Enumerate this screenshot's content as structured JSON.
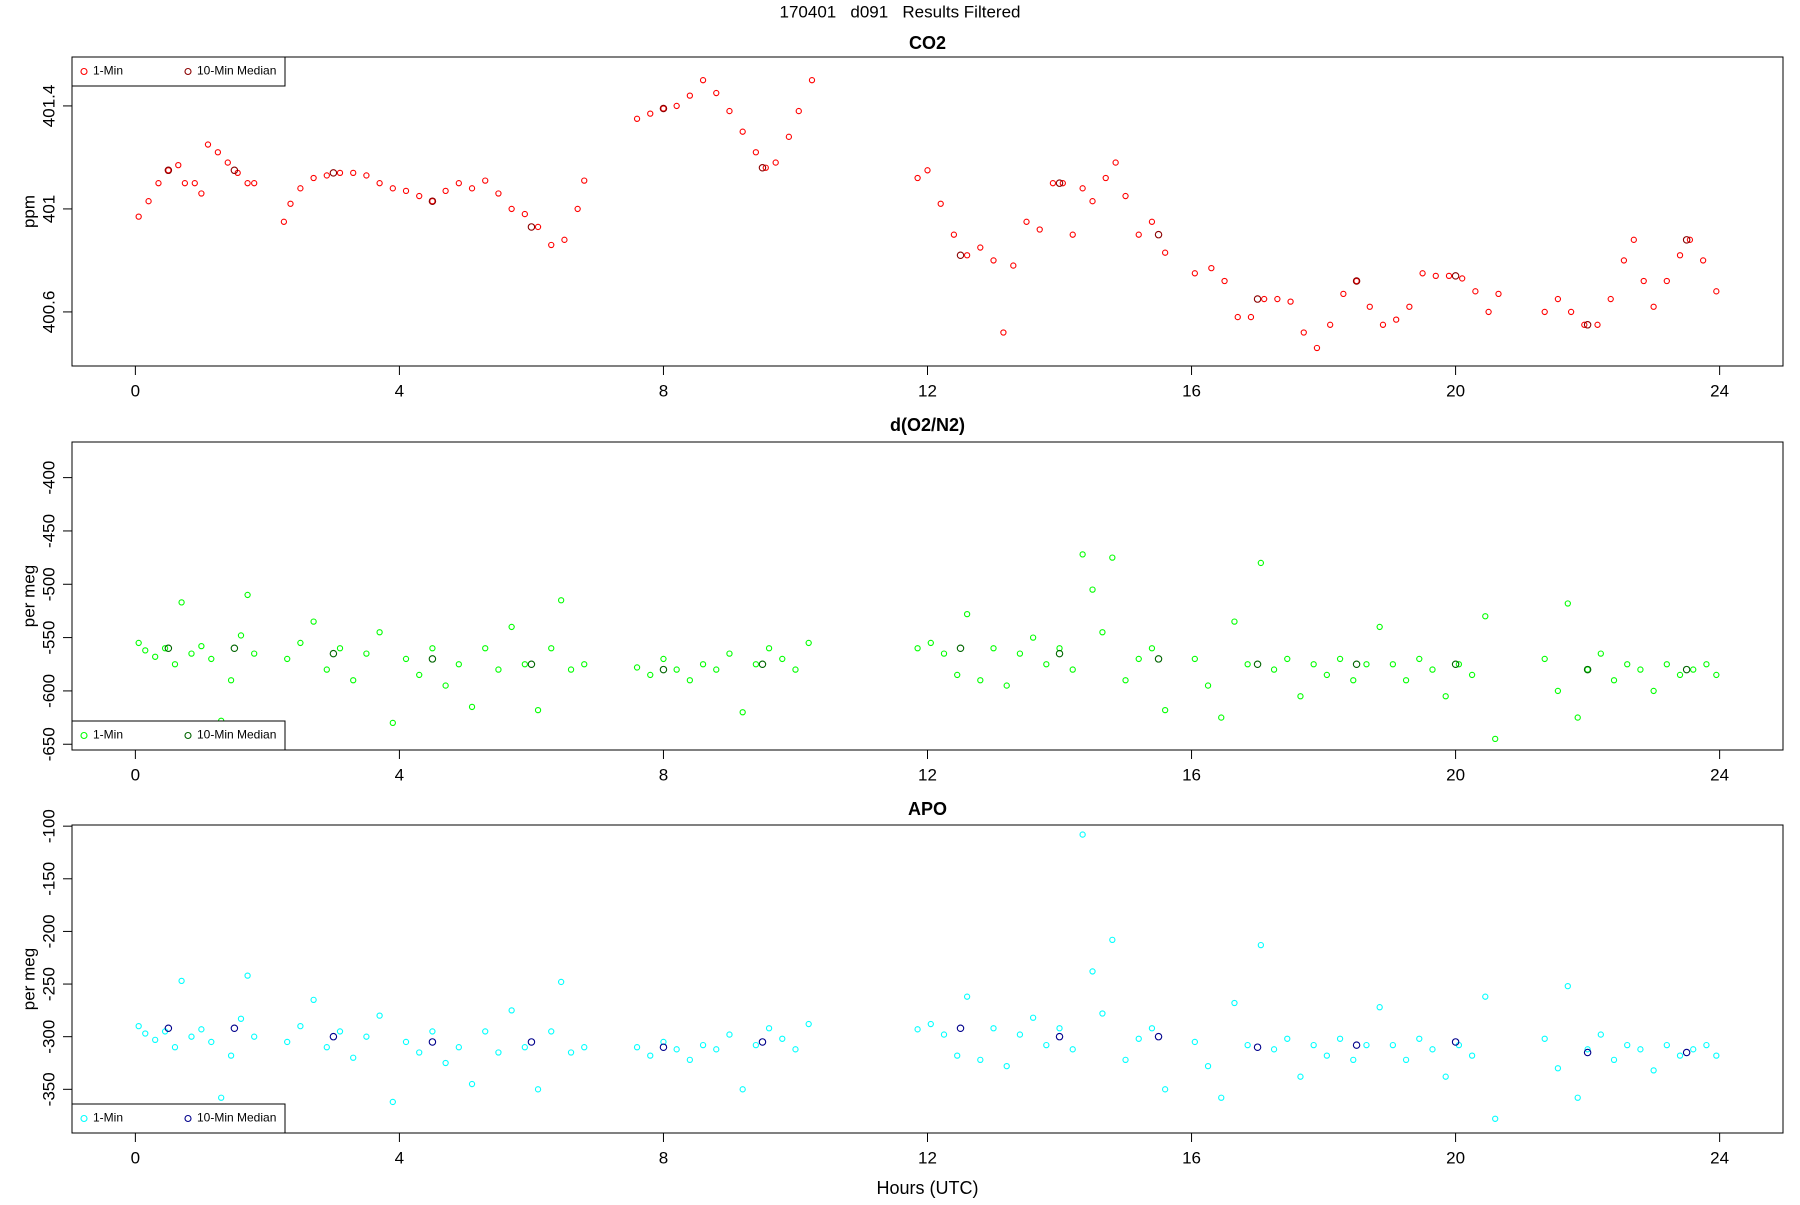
{
  "title": "170401   d091   Results Filtered",
  "chart_data": [
    {
      "type": "scatter",
      "title": "CO2",
      "ylabel": "ppm",
      "xlim": [
        -0.96,
        24.96
      ],
      "xticks": [
        0,
        4,
        8,
        12,
        16,
        20,
        24
      ],
      "ylim": [
        400.39,
        401.59
      ],
      "yticks": [
        400.6,
        401.0,
        401.4
      ],
      "legend": "top-left",
      "series": [
        {
          "name": "1-Min",
          "color": "#ff0000",
          "x": [
            0.05,
            0.2,
            0.35,
            0.5,
            0.65,
            0.75,
            0.9,
            1.0,
            1.1,
            1.25,
            1.4,
            1.55,
            1.7,
            1.8,
            2.25,
            2.35,
            2.5,
            2.7,
            2.9,
            3.1,
            3.3,
            3.5,
            3.7,
            3.9,
            4.1,
            4.3,
            4.5,
            4.7,
            4.9,
            5.1,
            5.3,
            5.5,
            5.7,
            5.9,
            6.1,
            6.3,
            6.5,
            6.7,
            6.8,
            7.6,
            7.8,
            8.0,
            8.2,
            8.4,
            8.6,
            8.8,
            9.0,
            9.2,
            9.4,
            9.55,
            9.7,
            9.9,
            10.05,
            10.25,
            11.85,
            12.0,
            12.2,
            12.4,
            12.6,
            12.8,
            13.0,
            13.15,
            13.3,
            13.5,
            13.7,
            13.9,
            14.05,
            14.2,
            14.35,
            14.5,
            14.7,
            14.85,
            15.0,
            15.2,
            15.4,
            15.6,
            16.05,
            16.3,
            16.5,
            16.7,
            16.9,
            17.1,
            17.3,
            17.5,
            17.7,
            17.9,
            18.1,
            18.3,
            18.5,
            18.7,
            18.9,
            19.1,
            19.3,
            19.5,
            19.7,
            19.9,
            20.1,
            20.3,
            20.5,
            20.65,
            21.35,
            21.55,
            21.75,
            21.95,
            22.15,
            22.35,
            22.55,
            22.7,
            22.85,
            23.0,
            23.2,
            23.4,
            23.55,
            23.75,
            23.95
          ],
          "values": [
            400.97,
            401.03,
            401.1,
            401.15,
            401.17,
            401.1,
            401.1,
            401.06,
            401.25,
            401.22,
            401.18,
            401.14,
            401.1,
            401.1,
            400.95,
            401.02,
            401.08,
            401.12,
            401.13,
            401.14,
            401.14,
            401.13,
            401.1,
            401.08,
            401.07,
            401.05,
            401.03,
            401.07,
            401.1,
            401.08,
            401.11,
            401.06,
            401.0,
            400.98,
            400.93,
            400.86,
            400.88,
            401.0,
            401.11,
            401.35,
            401.37,
            401.39,
            401.4,
            401.44,
            401.5,
            401.45,
            401.38,
            401.3,
            401.22,
            401.16,
            401.18,
            401.28,
            401.38,
            401.5,
            401.12,
            401.15,
            401.02,
            400.9,
            400.82,
            400.85,
            400.8,
            400.52,
            400.78,
            400.95,
            400.92,
            401.1,
            401.1,
            400.9,
            401.08,
            401.03,
            401.12,
            401.18,
            401.05,
            400.9,
            400.95,
            400.83,
            400.75,
            400.77,
            400.72,
            400.58,
            400.58,
            400.65,
            400.65,
            400.64,
            400.52,
            400.46,
            400.55,
            400.67,
            400.72,
            400.62,
            400.55,
            400.57,
            400.62,
            400.75,
            400.74,
            400.74,
            400.73,
            400.68,
            400.6,
            400.67,
            400.6,
            400.65,
            400.6,
            400.55,
            400.55,
            400.65,
            400.8,
            400.88,
            400.72,
            400.62,
            400.72,
            400.82,
            400.88,
            400.8,
            400.68
          ]
        },
        {
          "name": "10-Min Median",
          "color": "#8b0000",
          "x": [
            0.5,
            1.5,
            3.0,
            4.5,
            6.0,
            8.0,
            9.5,
            12.5,
            14.0,
            15.5,
            17.0,
            18.5,
            20.0,
            22.0,
            23.5
          ],
          "values": [
            401.15,
            401.15,
            401.14,
            401.03,
            400.93,
            401.39,
            401.16,
            400.82,
            401.1,
            400.9,
            400.65,
            400.72,
            400.74,
            400.55,
            400.88
          ]
        }
      ]
    },
    {
      "type": "scatter",
      "title": "d(O2/N2)",
      "ylabel": "per meg",
      "xlim": [
        -0.96,
        24.96
      ],
      "xticks": [
        0,
        4,
        8,
        12,
        16,
        20,
        24
      ],
      "ylim": [
        -655.4,
        -366.6
      ],
      "yticks": [
        -400,
        -450,
        -500,
        -550,
        -600,
        -650
      ],
      "legend": "bottom-left",
      "series": [
        {
          "name": "1-Min",
          "color": "#00ff00",
          "x": [
            0.05,
            0.15,
            0.3,
            0.45,
            0.6,
            0.7,
            0.85,
            1.0,
            1.15,
            1.3,
            1.45,
            1.6,
            1.7,
            1.8,
            2.3,
            2.5,
            2.7,
            2.9,
            3.1,
            3.3,
            3.5,
            3.7,
            3.9,
            4.1,
            4.3,
            4.5,
            4.7,
            4.9,
            5.1,
            5.3,
            5.5,
            5.7,
            5.9,
            6.1,
            6.3,
            6.45,
            6.6,
            6.8,
            7.6,
            7.8,
            8.0,
            8.2,
            8.4,
            8.6,
            8.8,
            9.0,
            9.2,
            9.4,
            9.6,
            9.8,
            10.0,
            10.2,
            11.85,
            12.05,
            12.25,
            12.45,
            12.6,
            12.8,
            13.0,
            13.2,
            13.4,
            13.6,
            13.8,
            14.0,
            14.2,
            14.35,
            14.5,
            14.65,
            14.8,
            15.0,
            15.2,
            15.4,
            15.6,
            16.05,
            16.25,
            16.45,
            16.65,
            16.85,
            17.05,
            17.25,
            17.45,
            17.65,
            17.85,
            18.05,
            18.25,
            18.45,
            18.65,
            18.85,
            19.05,
            19.25,
            19.45,
            19.65,
            19.85,
            20.05,
            20.25,
            20.45,
            20.6,
            21.35,
            21.55,
            21.7,
            21.85,
            22.0,
            22.2,
            22.4,
            22.6,
            22.8,
            23.0,
            23.2,
            23.4,
            23.6,
            23.8,
            23.95
          ],
          "values": [
            -555,
            -562,
            -568,
            -560,
            -575,
            -517,
            -565,
            -558,
            -570,
            -628,
            -590,
            -548,
            -510,
            -565,
            -570,
            -555,
            -535,
            -580,
            -560,
            -590,
            -565,
            -545,
            -630,
            -570,
            -585,
            -560,
            -595,
            -575,
            -615,
            -560,
            -580,
            -540,
            -575,
            -618,
            -560,
            -515,
            -580,
            -575,
            -578,
            -585,
            -570,
            -580,
            -590,
            -575,
            -580,
            -565,
            -620,
            -575,
            -560,
            -570,
            -580,
            -555,
            -560,
            -555,
            -565,
            -585,
            -528,
            -590,
            -560,
            -595,
            -565,
            -550,
            -575,
            -560,
            -580,
            -472,
            -505,
            -545,
            -475,
            -590,
            -570,
            -560,
            -618,
            -570,
            -595,
            -625,
            -535,
            -575,
            -480,
            -580,
            -570,
            -605,
            -575,
            -585,
            -570,
            -590,
            -575,
            -540,
            -575,
            -590,
            -570,
            -580,
            -605,
            -575,
            -585,
            -530,
            -645,
            -570,
            -600,
            -518,
            -625,
            -580,
            -565,
            -590,
            -575,
            -580,
            -600,
            -575,
            -585,
            -580,
            -575,
            -585
          ]
        },
        {
          "name": "10-Min Median",
          "color": "#006400",
          "x": [
            0.5,
            1.5,
            3.0,
            4.5,
            6.0,
            8.0,
            9.5,
            12.5,
            14.0,
            15.5,
            17.0,
            18.5,
            20.0,
            22.0,
            23.5
          ],
          "values": [
            -560,
            -560,
            -565,
            -570,
            -575,
            -580,
            -575,
            -560,
            -565,
            -570,
            -575,
            -575,
            -575,
            -580,
            -580
          ]
        }
      ]
    },
    {
      "type": "scatter",
      "title": "APO",
      "ylabel": "per meg",
      "xlabel": "Hours (UTC)",
      "xlim": [
        -0.96,
        24.96
      ],
      "xticks": [
        0,
        4,
        8,
        12,
        16,
        20,
        24
      ],
      "ylim": [
        -391.5,
        -98.9
      ],
      "yticks": [
        -100,
        -150,
        -200,
        -250,
        -300,
        -350
      ],
      "legend": "bottom-left",
      "series": [
        {
          "name": "1-Min",
          "color": "#00ffff",
          "x": [
            0.05,
            0.15,
            0.3,
            0.45,
            0.6,
            0.7,
            0.85,
            1.0,
            1.15,
            1.3,
            1.45,
            1.6,
            1.7,
            1.8,
            2.3,
            2.5,
            2.7,
            2.9,
            3.1,
            3.3,
            3.5,
            3.7,
            3.9,
            4.1,
            4.3,
            4.5,
            4.7,
            4.9,
            5.1,
            5.3,
            5.5,
            5.7,
            5.9,
            6.1,
            6.3,
            6.45,
            6.6,
            6.8,
            7.6,
            7.8,
            8.0,
            8.2,
            8.4,
            8.6,
            8.8,
            9.0,
            9.2,
            9.4,
            9.6,
            9.8,
            10.0,
            10.2,
            11.85,
            12.05,
            12.25,
            12.45,
            12.6,
            12.8,
            13.0,
            13.2,
            13.4,
            13.6,
            13.8,
            14.0,
            14.2,
            14.35,
            14.5,
            14.65,
            14.8,
            15.0,
            15.2,
            15.4,
            15.6,
            16.05,
            16.25,
            16.45,
            16.65,
            16.85,
            17.05,
            17.25,
            17.45,
            17.65,
            17.85,
            18.05,
            18.25,
            18.45,
            18.65,
            18.85,
            19.05,
            19.25,
            19.45,
            19.65,
            19.85,
            20.05,
            20.25,
            20.45,
            20.6,
            21.35,
            21.55,
            21.7,
            21.85,
            22.0,
            22.2,
            22.4,
            22.6,
            22.8,
            23.0,
            23.2,
            23.4,
            23.6,
            23.8,
            23.95
          ],
          "values": [
            -290,
            -297,
            -303,
            -295,
            -310,
            -247,
            -300,
            -293,
            -305,
            -358,
            -318,
            -283,
            -242,
            -300,
            -305,
            -290,
            -265,
            -310,
            -295,
            -320,
            -300,
            -280,
            -362,
            -305,
            -315,
            -295,
            -325,
            -310,
            -345,
            -295,
            -315,
            -275,
            -310,
            -350,
            -295,
            -248,
            -315,
            -310,
            -310,
            -318,
            -305,
            -312,
            -322,
            -308,
            -312,
            -298,
            -350,
            -308,
            -292,
            -302,
            -312,
            -288,
            -293,
            -288,
            -298,
            -318,
            -262,
            -322,
            -292,
            -328,
            -298,
            -282,
            -308,
            -292,
            -312,
            -108,
            -238,
            -278,
            -208,
            -322,
            -302,
            -292,
            -350,
            -305,
            -328,
            -358,
            -268,
            -308,
            -213,
            -312,
            -302,
            -338,
            -308,
            -318,
            -302,
            -322,
            -308,
            -272,
            -308,
            -322,
            -302,
            -312,
            -338,
            -308,
            -318,
            -262,
            -378,
            -302,
            -330,
            -252,
            -358,
            -312,
            -298,
            -322,
            -308,
            -312,
            -332,
            -308,
            -318,
            -312,
            -308,
            -318
          ]
        },
        {
          "name": "10-Min Median",
          "color": "#00008b",
          "x": [
            0.5,
            1.5,
            3.0,
            4.5,
            6.0,
            8.0,
            9.5,
            12.5,
            14.0,
            15.5,
            17.0,
            18.5,
            20.0,
            22.0,
            23.5
          ],
          "values": [
            -292,
            -292,
            -300,
            -305,
            -305,
            -310,
            -305,
            -292,
            -300,
            -300,
            -310,
            -308,
            -305,
            -315,
            -315
          ]
        }
      ]
    }
  ]
}
